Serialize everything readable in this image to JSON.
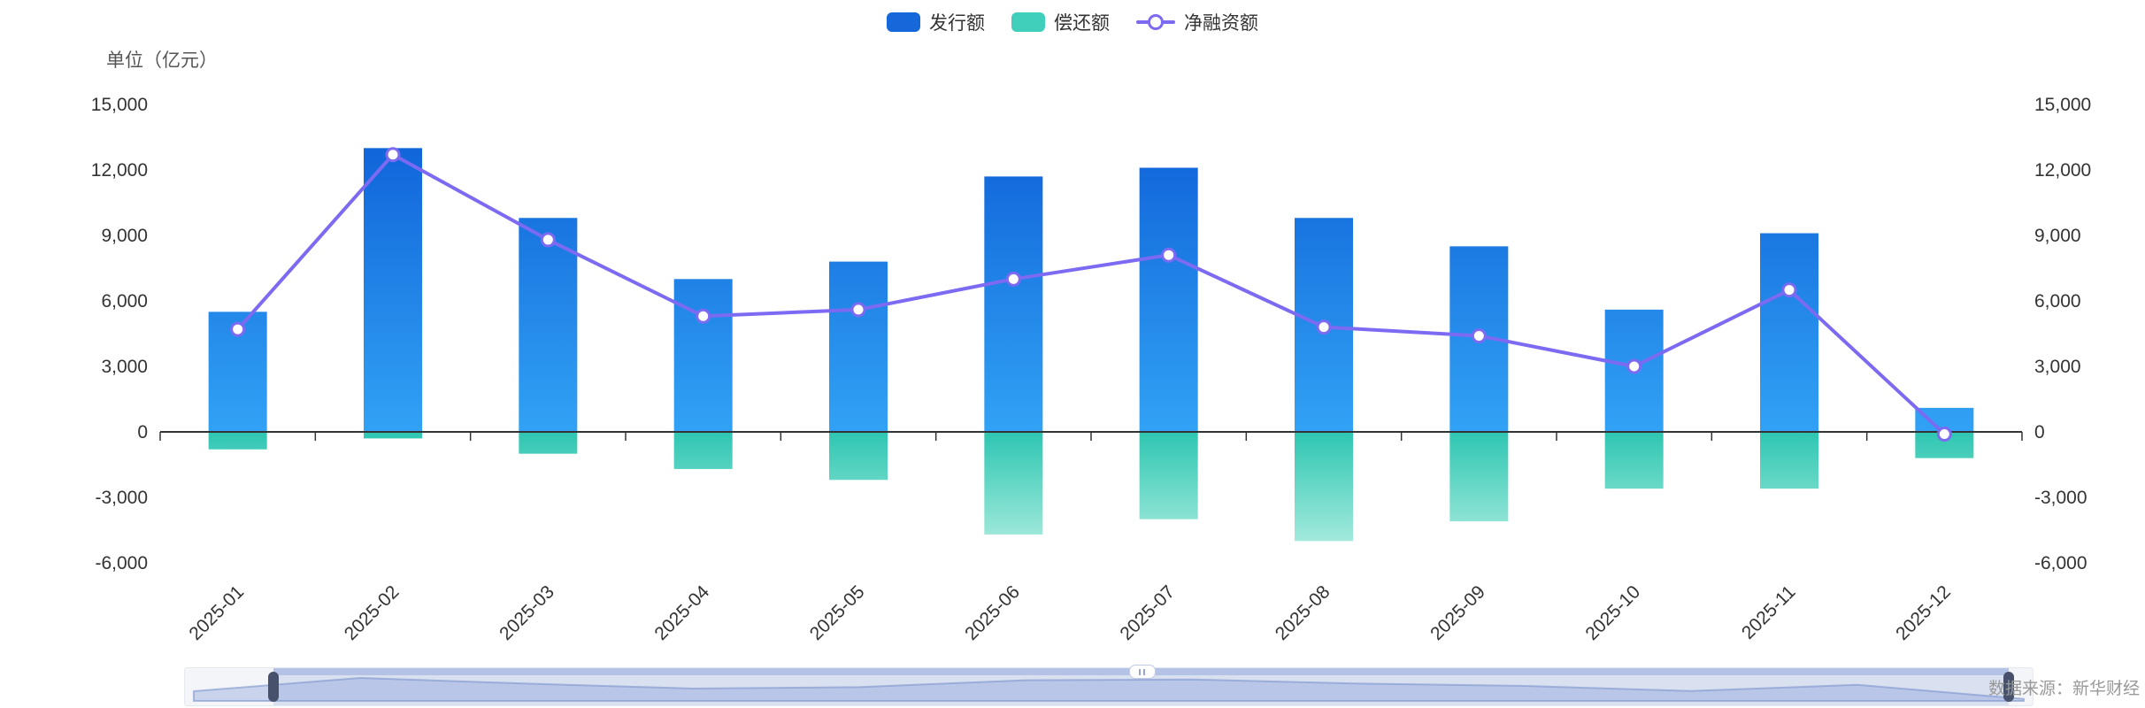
{
  "unit_label": "单位（亿元）",
  "source_label": "数据来源：新华财经",
  "legend": {
    "items": [
      {
        "label": "发行额",
        "marker": "bar",
        "color": "#1667D9"
      },
      {
        "label": "偿还额",
        "marker": "bar",
        "color": "#3FCFBB"
      },
      {
        "label": "净融资额",
        "marker": "line",
        "color": "#7C6AF2"
      }
    ]
  },
  "axes": {
    "y_left_labels": [
      "15,000",
      "12,000",
      "9,000",
      "6,000",
      "3,000",
      "0",
      "-3,000",
      "-6,000"
    ],
    "y_right_labels": [
      "15,000",
      "12,000",
      "9,000",
      "6,000",
      "3,000",
      "0",
      "-3,000",
      "-6,000"
    ]
  },
  "chart_data": {
    "type": "bar",
    "title": "",
    "unit": "亿元",
    "categories": [
      "2025-01",
      "2025-02",
      "2025-03",
      "2025-04",
      "2025-05",
      "2025-06",
      "2025-07",
      "2025-08",
      "2025-09",
      "2025-10",
      "2025-11",
      "2025-12"
    ],
    "series": [
      {
        "name": "发行额",
        "type": "bar",
        "values": [
          5500,
          13000,
          9800,
          7000,
          7800,
          11700,
          12100,
          9800,
          8500,
          5600,
          9100,
          1100
        ]
      },
      {
        "name": "偿还额",
        "type": "bar",
        "values": [
          -800,
          -300,
          -1000,
          -1700,
          -2200,
          -4700,
          -4000,
          -5000,
          -4100,
          -2600,
          -2600,
          -1200
        ]
      },
      {
        "name": "净融资额",
        "type": "line",
        "values": [
          4700,
          12700,
          8800,
          5300,
          5600,
          7000,
          8100,
          4800,
          4400,
          3000,
          6500,
          -100
        ]
      }
    ],
    "ylim": [
      -6000,
      15000
    ],
    "ytick_step": 3000,
    "grid": false,
    "legend_position": "top"
  },
  "colors": {
    "bar_issue_top": "#0C5CD5",
    "bar_issue_bottom": "#31A2F5",
    "bar_repay_top": "#2EC6B2",
    "bar_repay_bottom": "#B9F1E4",
    "line": "#7C6AF2",
    "marker_fill": "#FFFFFF",
    "axis_line": "#333333",
    "axis_text": "#333333",
    "zoom_track": "#F3F5F8",
    "zoom_selected": "rgba(128,152,216,0.22)",
    "zoom_handle": "#47516B"
  },
  "datazoom": {
    "start_percent": 4.8,
    "end_percent": 98.7
  }
}
